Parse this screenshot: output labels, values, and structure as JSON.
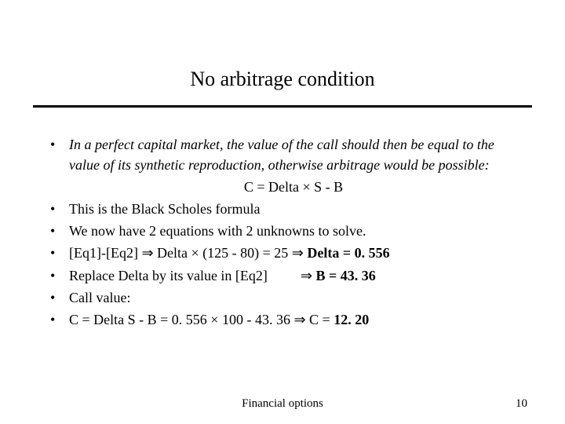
{
  "title": "No arbitrage condition",
  "bullets": {
    "b1_text": "In a perfect capital market, the value of the call should then be equal to the value of its synthetic reproduction, otherwise arbitrage would be possible:",
    "b1_formula": "C = Delta × S - B",
    "b2": "This is the Black Scholes formula",
    "b3": "We now have 2 equations with 2 unknowns to solve.",
    "b4_pre": "[Eq1]-[Eq2] ⇒ Delta × (125 - 80) = 25 ⇒ ",
    "b4_bold": "Delta = 0. 556",
    "b5_pre": "Replace Delta by its value in [Eq2]",
    "b5_arrow": "⇒ ",
    "b5_bold": "B =  43. 36",
    "b6": "Call value:",
    "b7_pre": "C = Delta S - B = 0. 556 × 100 - 43. 36 ⇒ C = ",
    "b7_bold": "12. 20"
  },
  "footer": {
    "center": "Financial options",
    "page": "10"
  }
}
